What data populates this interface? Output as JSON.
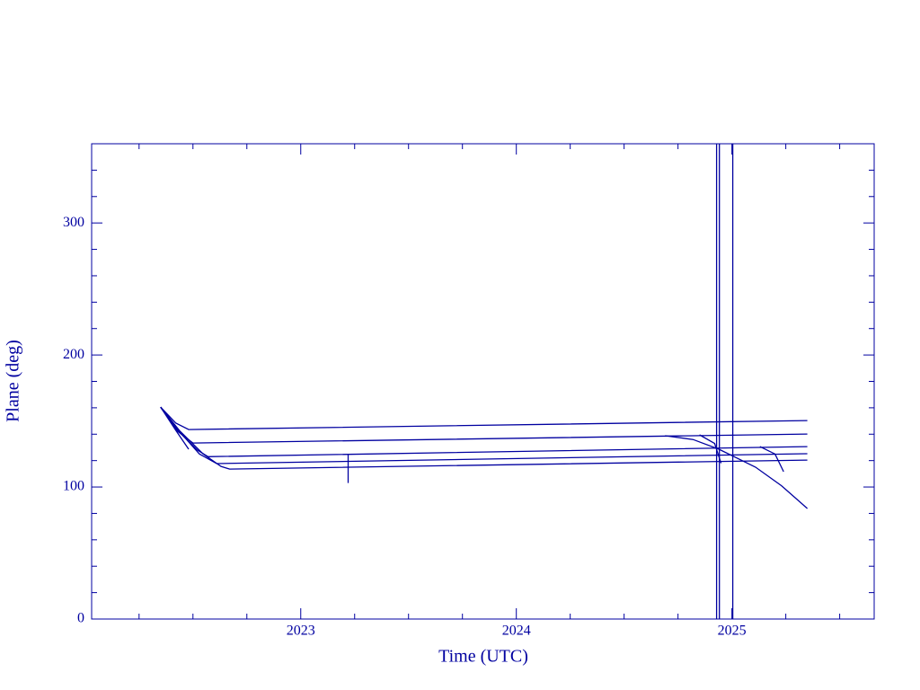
{
  "chart_data": {
    "type": "line",
    "x_label": "Time (UTC)",
    "y_label": "Plane (deg)",
    "xlim": [
      2022.03,
      2025.66
    ],
    "ylim": [
      0,
      360
    ],
    "xticks": [
      2023,
      2024,
      2025
    ],
    "yticks": [
      0,
      100,
      200,
      300
    ],
    "xminor_ticks": [
      2022.25,
      2022.5,
      2022.75,
      2023.25,
      2023.5,
      2023.75,
      2024.25,
      2024.5,
      2024.75,
      2025.25,
      2025.5
    ],
    "yminor_ticks": [
      20,
      40,
      60,
      80,
      120,
      140,
      160,
      180,
      220,
      240,
      260,
      280,
      320,
      340
    ],
    "color": "#0000a0",
    "series": [
      {
        "color": "#0000a0",
        "x": [
          2022.35,
          2022.42,
          2022.48,
          2025.35
        ],
        "values": [
          160.5,
          148.5,
          143.5,
          150.3
        ]
      },
      {
        "color": "#0000a0",
        "x": [
          2022.35,
          2022.43,
          2022.5,
          2025.35
        ],
        "values": [
          160.5,
          142,
          133.3,
          140.1
        ]
      },
      {
        "color": "#0000a0",
        "x": [
          2022.35,
          2022.44,
          2022.52,
          2022.57,
          2025.35
        ],
        "values": [
          160.5,
          141,
          128,
          123,
          130.6
        ]
      },
      {
        "color": "#0000a0",
        "x": [
          2022.35,
          2022.44,
          2022.53,
          2022.61,
          2025.35
        ],
        "values": [
          160.5,
          141.5,
          125,
          117.7,
          125.2
        ]
      },
      {
        "color": "#0000a0",
        "x": [
          2022.35,
          2022.44,
          2022.546,
          2022.63,
          2022.67,
          2025.35
        ],
        "values": [
          160.5,
          142.2,
          125.2,
          115.6,
          113.6,
          120.4
        ]
      },
      {
        "color": "#0000a0",
        "x": [
          2022.35,
          2022.42,
          2022.48
        ],
        "values": [
          160.5,
          143,
          128.6
        ]
      },
      {
        "color": "#0000a0",
        "x": [
          2024.69,
          2024.82,
          2024.94,
          2025.11,
          2025.23,
          2025.35
        ],
        "values": [
          138.8,
          136,
          128.6,
          115,
          101,
          83.7
        ]
      },
      {
        "color": "#0000a0",
        "x": [
          2025.13,
          2025.2,
          2025.24
        ],
        "values": [
          130.6,
          125,
          111.6
        ]
      },
      {
        "color": "#0000a0",
        "x": [
          2024.85,
          2024.92,
          2024.95
        ],
        "values": [
          139.5,
          133,
          118
        ]
      },
      {
        "color": "#0000a0",
        "x": [
          2023.22,
          2023.22
        ],
        "values": [
          125,
          103
        ]
      },
      {
        "color": "#0000a0",
        "x": [
          2024.929,
          2024.929
        ],
        "values": [
          0,
          360
        ]
      },
      {
        "color": "#0000a0",
        "x": [
          2024.942,
          2024.942
        ],
        "values": [
          0,
          360
        ]
      },
      {
        "color": "#0000a0",
        "x": [
          2025.004,
          2025.004
        ],
        "values": [
          0,
          360
        ]
      }
    ]
  }
}
